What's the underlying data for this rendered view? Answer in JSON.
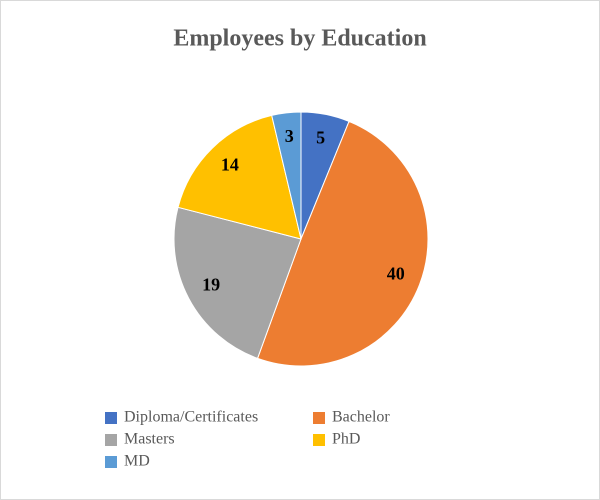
{
  "chart_data": {
    "type": "pie",
    "title": "Employees by Education",
    "categories": [
      "Diploma/Certificates",
      "Bachelor",
      "Masters",
      "PhD",
      "MD"
    ],
    "values": [
      5,
      40,
      19,
      14,
      3
    ],
    "colors": [
      "#4472c4",
      "#ed7d31",
      "#a5a5a5",
      "#ffc000",
      "#5b9bd5"
    ]
  }
}
